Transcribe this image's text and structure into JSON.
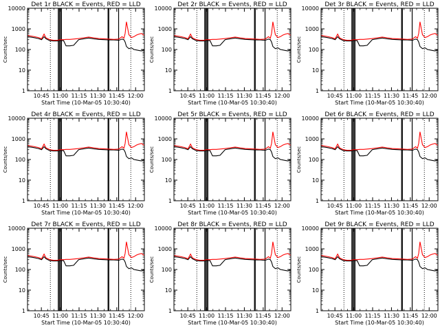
{
  "chart_data": [
    {
      "type": "line",
      "title": "Det 1r BLACK = Events, RED = LLD"
    },
    {
      "type": "line",
      "title": "Det 2r BLACK = Events, RED = LLD"
    },
    {
      "type": "line",
      "title": "Det 3r BLACK = Events, RED = LLD"
    },
    {
      "type": "line",
      "title": "Det 4r BLACK = Events, RED = LLD"
    },
    {
      "type": "line",
      "title": "Det 5r BLACK = Events, RED = LLD"
    },
    {
      "type": "line",
      "title": "Det 6r BLACK = Events, RED = LLD"
    },
    {
      "type": "line",
      "title": "Det 7r BLACK = Events, RED = LLD"
    },
    {
      "type": "line",
      "title": "Det 8r BLACK = Events, RED = LLD"
    },
    {
      "type": "line",
      "title": "Det 9r BLACK = Events, RED = LLD"
    }
  ],
  "shared": {
    "xlabel": "Start Time (10-Mar-05 10:30:40)",
    "ylabel": "Counts/sec",
    "y_scale": "log",
    "ylim": [
      1,
      10000
    ],
    "y_ticks": [
      {
        "value": 1,
        "label": "1"
      },
      {
        "value": 10,
        "label": "10"
      },
      {
        "value": 100,
        "label": "100"
      },
      {
        "value": 1000,
        "label": "1000"
      },
      {
        "value": 10000,
        "label": "10000"
      }
    ],
    "xlim_minutes_after_start": [
      3.3,
      96.3
    ],
    "x_ticks": [
      {
        "minutes": 14.33,
        "label": "10:45"
      },
      {
        "minutes": 29.33,
        "label": "11:00"
      },
      {
        "minutes": 44.33,
        "label": "11:15"
      },
      {
        "minutes": 59.33,
        "label": "11:30"
      },
      {
        "minutes": 74.33,
        "label": "11:45"
      },
      {
        "minutes": 89.33,
        "label": "12:00"
      }
    ],
    "dotted_marker_minutes": [
      21.5,
      85.5
    ],
    "vertical_bars_minutes": [
      27.8,
      28.6,
      29.5,
      30.3,
      67.4,
      68.0,
      75.8
    ],
    "series": [
      {
        "name": "BLACK = Events",
        "color": "#000000",
        "x": [
          3.3,
          8,
          12,
          14.5,
          16.5,
          18,
          21,
          24,
          27,
          29.2,
          32,
          34,
          37,
          40,
          44,
          48,
          52,
          56,
          60,
          64,
          68,
          72,
          76,
          78.5,
          80,
          81,
          82,
          84,
          86,
          88,
          90,
          92,
          94,
          96.3
        ],
        "y": [
          420,
          380,
          340,
          300,
          420,
          330,
          270,
          260,
          260,
          270,
          270,
          150,
          150,
          160,
          300,
          330,
          360,
          330,
          310,
          300,
          290,
          290,
          280,
          320,
          300,
          230,
          140,
          110,
          120,
          100,
          95,
          90,
          85,
          100
        ]
      },
      {
        "name": "RED = LLD",
        "color": "#ff0000",
        "x": [
          3.3,
          8,
          12,
          14.5,
          16.5,
          18,
          21,
          24,
          27,
          29.2,
          32,
          34,
          37,
          40,
          44,
          48,
          52,
          56,
          60,
          64,
          68,
          72,
          76,
          78.5,
          80,
          81,
          82,
          84,
          86,
          88,
          90,
          92,
          94,
          96.3
        ],
        "y": [
          480,
          430,
          380,
          330,
          560,
          370,
          300,
          280,
          280,
          300,
          300,
          310,
          310,
          320,
          340,
          370,
          400,
          370,
          340,
          330,
          320,
          310,
          320,
          420,
          350,
          600,
          2200,
          520,
          380,
          420,
          500,
          560,
          600,
          480
        ]
      }
    ]
  }
}
